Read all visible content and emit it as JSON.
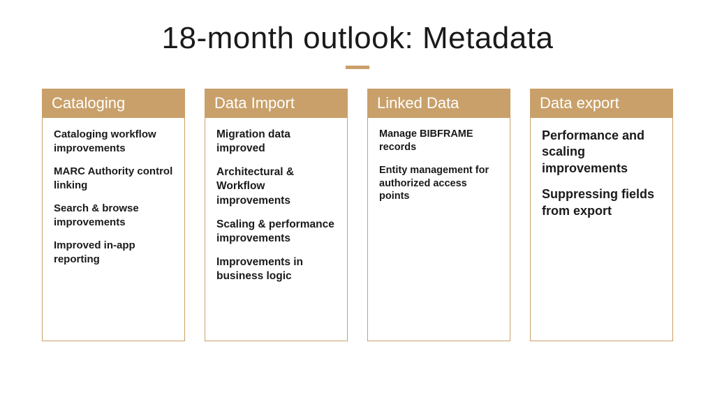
{
  "title": "18-month outlook: Metadata",
  "accent_color": "#c9a06a",
  "border_color": "#c9a06a",
  "background_color": "#ffffff",
  "title_color": "#1a1a1a",
  "header_text_color": "#ffffff",
  "item_text_color": "#1a1a1a",
  "title_fontsize": 44,
  "header_fontsize": 22,
  "divider_width": 34,
  "divider_height": 5,
  "columns": [
    {
      "header": "Cataloging",
      "item_fontsize": 15,
      "items": [
        "Cataloging workflow improvements",
        "MARC Authority control linking",
        "Search & browse improvements",
        "Improved in-app reporting"
      ]
    },
    {
      "header": "Data Import",
      "item_fontsize": 15.5,
      "items": [
        "Migration data improved",
        "Architectural & Workflow improvements",
        "Scaling & performance improvements",
        "Improvements in business logic"
      ]
    },
    {
      "header": "Linked Data",
      "item_fontsize": 14.5,
      "items": [
        "Manage BIBFRAME records",
        "Entity management for authorized access points"
      ]
    },
    {
      "header": "Data export",
      "item_fontsize": 18,
      "items": [
        "Performance and scaling improvements",
        "Suppressing fields from export"
      ]
    }
  ]
}
